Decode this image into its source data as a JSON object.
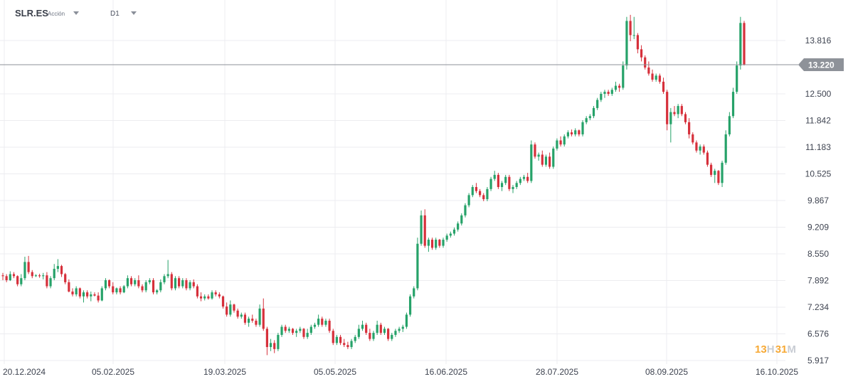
{
  "header": {
    "symbol": "SLR.ES",
    "instrument_type": "Acción",
    "timeframe": "D1"
  },
  "timer": {
    "hours": "13",
    "hours_unit": "H",
    "minutes": "31",
    "minutes_unit": "M"
  },
  "colors": {
    "up": "#26a269",
    "down": "#d6303b",
    "grid": "#ececf0",
    "price_line": "#8e9299",
    "price_badge": "#8e9299"
  },
  "chart_data": {
    "type": "candlestick",
    "y_ticks": [
      "13.816",
      "12.500",
      "11.842",
      "11.183",
      "10.525",
      "9.867",
      "9.209",
      "8.550",
      "7.892",
      "7.234",
      "6.576",
      "5.917"
    ],
    "x_ticks": [
      "20.12.2024",
      "05.02.2025",
      "19.03.2025",
      "05.05.2025",
      "16.06.2025",
      "28.07.2025",
      "08.09.2025",
      "16.10.2025"
    ],
    "current_price": "13.220",
    "ylim": [
      5.9,
      14.45
    ],
    "grid": true,
    "candles": [
      [
        8.02,
        8.08,
        7.9,
        8.0
      ],
      [
        8.0,
        8.05,
        7.85,
        7.9
      ],
      [
        7.9,
        8.12,
        7.88,
        8.05
      ],
      [
        8.05,
        8.1,
        7.95,
        8.0
      ],
      [
        8.0,
        8.02,
        7.75,
        7.8
      ],
      [
        7.8,
        8.05,
        7.75,
        7.95
      ],
      [
        7.95,
        8.48,
        7.9,
        8.35
      ],
      [
        8.35,
        8.5,
        8.05,
        8.1
      ],
      [
        8.1,
        8.15,
        7.95,
        8.0
      ],
      [
        8.0,
        8.05,
        7.98,
        8.02
      ],
      [
        8.02,
        8.06,
        7.96,
        8.0
      ],
      [
        8.0,
        8.08,
        7.92,
        8.02
      ],
      [
        8.02,
        8.1,
        7.7,
        7.75
      ],
      [
        7.75,
        8.0,
        7.7,
        7.95
      ],
      [
        7.95,
        8.3,
        7.9,
        8.18
      ],
      [
        8.18,
        8.42,
        8.1,
        8.25
      ],
      [
        8.25,
        8.28,
        7.98,
        8.05
      ],
      [
        8.05,
        8.08,
        7.8,
        7.85
      ],
      [
        7.85,
        7.92,
        7.6,
        7.62
      ],
      [
        7.62,
        7.7,
        7.5,
        7.55
      ],
      [
        7.55,
        7.75,
        7.5,
        7.7
      ],
      [
        7.7,
        7.72,
        7.45,
        7.5
      ],
      [
        7.5,
        7.65,
        7.35,
        7.6
      ],
      [
        7.6,
        7.65,
        7.45,
        7.5
      ],
      [
        7.5,
        7.62,
        7.38,
        7.55
      ],
      [
        7.55,
        7.6,
        7.5,
        7.52
      ],
      [
        7.52,
        7.6,
        7.35,
        7.4
      ],
      [
        7.4,
        7.75,
        7.38,
        7.7
      ],
      [
        7.7,
        7.95,
        7.65,
        7.9
      ],
      [
        7.9,
        7.92,
        7.7,
        7.75
      ],
      [
        7.75,
        7.85,
        7.55,
        7.6
      ],
      [
        7.6,
        7.72,
        7.55,
        7.7
      ],
      [
        7.7,
        7.75,
        7.55,
        7.6
      ],
      [
        7.6,
        7.78,
        7.58,
        7.75
      ],
      [
        7.75,
        8.02,
        7.7,
        7.95
      ],
      [
        7.95,
        8.0,
        7.75,
        7.8
      ],
      [
        7.8,
        7.95,
        7.75,
        7.9
      ],
      [
        7.9,
        8.02,
        7.7,
        7.75
      ],
      [
        7.75,
        7.8,
        7.6,
        7.65
      ],
      [
        7.65,
        7.9,
        7.6,
        7.85
      ],
      [
        7.85,
        7.95,
        7.8,
        7.9
      ],
      [
        7.9,
        7.95,
        7.55,
        7.6
      ],
      [
        7.6,
        7.68,
        7.55,
        7.65
      ],
      [
        7.65,
        7.92,
        7.6,
        7.85
      ],
      [
        7.85,
        8.05,
        7.8,
        8.0
      ],
      [
        8.0,
        8.4,
        7.95,
        8.05
      ],
      [
        8.05,
        8.1,
        7.65,
        7.7
      ],
      [
        7.7,
        8.0,
        7.65,
        7.95
      ],
      [
        7.95,
        8.0,
        7.7,
        7.75
      ],
      [
        7.75,
        7.95,
        7.7,
        7.9
      ],
      [
        7.9,
        7.95,
        7.65,
        7.7
      ],
      [
        7.7,
        7.9,
        7.65,
        7.85
      ],
      [
        7.85,
        7.92,
        7.7,
        7.75
      ],
      [
        7.75,
        7.8,
        7.45,
        7.5
      ],
      [
        7.5,
        7.6,
        7.38,
        7.45
      ],
      [
        7.45,
        7.55,
        7.4,
        7.5
      ],
      [
        7.5,
        7.55,
        7.42,
        7.45
      ],
      [
        7.45,
        7.65,
        7.42,
        7.6
      ],
      [
        7.6,
        7.65,
        7.5,
        7.55
      ],
      [
        7.55,
        7.6,
        7.45,
        7.5
      ],
      [
        7.5,
        7.52,
        7.2,
        7.25
      ],
      [
        7.25,
        7.35,
        7.0,
        7.05
      ],
      [
        7.05,
        7.4,
        7.0,
        7.3
      ],
      [
        7.3,
        7.32,
        7.1,
        7.15
      ],
      [
        7.15,
        7.2,
        6.95,
        7.0
      ],
      [
        7.0,
        7.1,
        6.95,
        7.05
      ],
      [
        7.05,
        7.1,
        6.8,
        6.85
      ],
      [
        6.85,
        7.0,
        6.75,
        6.95
      ],
      [
        6.95,
        7.05,
        6.85,
        6.9
      ],
      [
        6.9,
        6.95,
        6.75,
        6.8
      ],
      [
        6.8,
        7.3,
        6.75,
        7.2
      ],
      [
        7.2,
        7.45,
        6.65,
        6.7
      ],
      [
        6.7,
        6.75,
        6.05,
        6.25
      ],
      [
        6.25,
        6.45,
        6.15,
        6.35
      ],
      [
        6.35,
        6.42,
        6.1,
        6.2
      ],
      [
        6.2,
        6.6,
        6.15,
        6.55
      ],
      [
        6.55,
        6.8,
        6.5,
        6.75
      ],
      [
        6.75,
        6.8,
        6.6,
        6.65
      ],
      [
        6.65,
        6.75,
        6.6,
        6.7
      ],
      [
        6.7,
        6.72,
        6.55,
        6.6
      ],
      [
        6.6,
        6.7,
        6.5,
        6.65
      ],
      [
        6.65,
        6.75,
        6.6,
        6.7
      ],
      [
        6.7,
        6.72,
        6.45,
        6.5
      ],
      [
        6.5,
        6.7,
        6.45,
        6.6
      ],
      [
        6.6,
        6.8,
        6.55,
        6.75
      ],
      [
        6.75,
        6.85,
        6.7,
        6.8
      ],
      [
        6.8,
        7.05,
        6.75,
        6.95
      ],
      [
        6.95,
        7.0,
        6.75,
        6.8
      ],
      [
        6.8,
        6.95,
        6.75,
        6.9
      ],
      [
        6.9,
        6.95,
        6.6,
        6.65
      ],
      [
        6.65,
        6.7,
        6.3,
        6.35
      ],
      [
        6.35,
        6.55,
        6.3,
        6.5
      ],
      [
        6.5,
        6.55,
        6.3,
        6.35
      ],
      [
        6.35,
        6.45,
        6.25,
        6.3
      ],
      [
        6.3,
        6.38,
        6.2,
        6.25
      ],
      [
        6.25,
        6.45,
        6.2,
        6.4
      ],
      [
        6.4,
        6.55,
        6.35,
        6.5
      ],
      [
        6.5,
        6.8,
        6.45,
        6.7
      ],
      [
        6.7,
        6.9,
        6.65,
        6.8
      ],
      [
        6.8,
        6.85,
        6.55,
        6.6
      ],
      [
        6.6,
        6.7,
        6.4,
        6.45
      ],
      [
        6.45,
        6.65,
        6.4,
        6.6
      ],
      [
        6.6,
        6.9,
        6.55,
        6.8
      ],
      [
        6.8,
        6.85,
        6.55,
        6.6
      ],
      [
        6.6,
        6.75,
        6.55,
        6.7
      ],
      [
        6.7,
        6.72,
        6.4,
        6.45
      ],
      [
        6.45,
        6.6,
        6.4,
        6.55
      ],
      [
        6.55,
        6.7,
        6.5,
        6.65
      ],
      [
        6.65,
        6.75,
        6.6,
        6.7
      ],
      [
        6.7,
        6.8,
        6.62,
        6.75
      ],
      [
        6.75,
        7.1,
        6.7,
        7.05
      ],
      [
        7.05,
        7.55,
        7.0,
        7.5
      ],
      [
        7.5,
        7.75,
        7.45,
        7.7
      ],
      [
        7.7,
        8.95,
        7.65,
        8.8
      ],
      [
        8.8,
        9.62,
        8.75,
        9.5
      ],
      [
        9.5,
        9.65,
        8.7,
        8.75
      ],
      [
        8.75,
        8.95,
        8.6,
        8.9
      ],
      [
        8.9,
        8.95,
        8.65,
        8.7
      ],
      [
        8.7,
        8.95,
        8.65,
        8.9
      ],
      [
        8.9,
        8.92,
        8.7,
        8.75
      ],
      [
        8.75,
        8.95,
        8.7,
        8.9
      ],
      [
        8.9,
        9.05,
        8.85,
        9.0
      ],
      [
        9.0,
        9.1,
        8.95,
        9.05
      ],
      [
        9.05,
        9.2,
        9.0,
        9.15
      ],
      [
        9.15,
        9.35,
        9.1,
        9.3
      ],
      [
        9.3,
        9.55,
        9.25,
        9.5
      ],
      [
        9.5,
        9.8,
        9.45,
        9.75
      ],
      [
        9.75,
        10.05,
        9.7,
        10.0
      ],
      [
        10.0,
        10.25,
        9.95,
        10.2
      ],
      [
        10.2,
        10.3,
        10.05,
        10.1
      ],
      [
        10.1,
        10.15,
        9.95,
        10.0
      ],
      [
        10.0,
        10.05,
        9.85,
        9.9
      ],
      [
        9.9,
        10.2,
        9.85,
        10.15
      ],
      [
        10.15,
        10.45,
        10.1,
        10.4
      ],
      [
        10.4,
        10.6,
        10.35,
        10.5
      ],
      [
        10.5,
        10.55,
        10.15,
        10.2
      ],
      [
        10.2,
        10.35,
        10.1,
        10.3
      ],
      [
        10.3,
        10.5,
        10.25,
        10.45
      ],
      [
        10.45,
        10.5,
        10.1,
        10.15
      ],
      [
        10.15,
        10.25,
        10.05,
        10.2
      ],
      [
        10.2,
        10.35,
        10.15,
        10.3
      ],
      [
        10.3,
        10.45,
        10.25,
        10.4
      ],
      [
        10.4,
        10.5,
        10.35,
        10.45
      ],
      [
        10.45,
        10.55,
        10.3,
        10.35
      ],
      [
        10.35,
        11.35,
        10.3,
        11.25
      ],
      [
        11.25,
        11.3,
        10.9,
        10.95
      ],
      [
        10.95,
        11.05,
        10.85,
        11.0
      ],
      [
        11.0,
        11.1,
        10.7,
        10.75
      ],
      [
        10.75,
        11.0,
        10.7,
        10.95
      ],
      [
        10.95,
        11.05,
        10.65,
        10.7
      ],
      [
        10.7,
        11.2,
        10.65,
        11.15
      ],
      [
        11.15,
        11.4,
        11.1,
        11.35
      ],
      [
        11.35,
        11.45,
        11.2,
        11.25
      ],
      [
        11.25,
        11.5,
        11.2,
        11.45
      ],
      [
        11.45,
        11.6,
        11.4,
        11.55
      ],
      [
        11.55,
        11.62,
        11.45,
        11.5
      ],
      [
        11.5,
        11.65,
        11.45,
        11.6
      ],
      [
        11.6,
        11.62,
        11.45,
        11.5
      ],
      [
        11.5,
        11.85,
        11.45,
        11.8
      ],
      [
        11.8,
        11.95,
        11.75,
        11.9
      ],
      [
        11.9,
        12.0,
        11.85,
        11.95
      ],
      [
        11.95,
        12.2,
        11.9,
        12.15
      ],
      [
        12.15,
        12.4,
        12.1,
        12.35
      ],
      [
        12.35,
        12.55,
        12.3,
        12.5
      ],
      [
        12.5,
        12.6,
        12.4,
        12.55
      ],
      [
        12.55,
        12.6,
        12.45,
        12.5
      ],
      [
        12.5,
        12.65,
        12.45,
        12.6
      ],
      [
        12.6,
        12.8,
        12.55,
        12.7
      ],
      [
        12.7,
        12.75,
        12.55,
        12.65
      ],
      [
        12.65,
        13.3,
        12.6,
        13.2
      ],
      [
        13.2,
        14.4,
        13.1,
        14.3
      ],
      [
        14.3,
        14.45,
        13.8,
        13.95
      ],
      [
        13.95,
        14.4,
        13.85,
        13.95
      ],
      [
        13.95,
        14.0,
        13.5,
        13.6
      ],
      [
        13.6,
        13.7,
        13.3,
        13.4
      ],
      [
        13.4,
        13.45,
        13.1,
        13.15
      ],
      [
        13.15,
        13.3,
        12.95,
        13.0
      ],
      [
        13.0,
        13.1,
        12.8,
        12.85
      ],
      [
        12.85,
        13.0,
        12.8,
        12.95
      ],
      [
        12.95,
        13.0,
        12.75,
        12.8
      ],
      [
        12.8,
        12.9,
        12.5,
        12.55
      ],
      [
        12.55,
        12.6,
        11.6,
        11.75
      ],
      [
        11.75,
        12.15,
        11.3,
        12.05
      ],
      [
        12.05,
        12.2,
        11.95,
        12.0
      ],
      [
        12.0,
        12.25,
        11.9,
        12.2
      ],
      [
        12.2,
        12.25,
        11.95,
        12.0
      ],
      [
        12.0,
        12.05,
        11.75,
        11.8
      ],
      [
        11.8,
        11.9,
        11.4,
        11.5
      ],
      [
        11.5,
        11.55,
        11.25,
        11.3
      ],
      [
        11.3,
        11.35,
        11.05,
        11.1
      ],
      [
        11.1,
        11.25,
        11.0,
        11.2
      ],
      [
        11.2,
        11.25,
        11.0,
        11.05
      ],
      [
        11.05,
        11.1,
        10.7,
        10.75
      ],
      [
        10.75,
        10.8,
        10.45,
        10.5
      ],
      [
        10.5,
        10.65,
        10.3,
        10.6
      ],
      [
        10.6,
        10.62,
        10.25,
        10.3
      ],
      [
        10.3,
        10.85,
        10.2,
        10.8
      ],
      [
        10.8,
        11.6,
        10.75,
        11.5
      ],
      [
        11.5,
        12.05,
        11.45,
        11.95
      ],
      [
        11.95,
        12.65,
        11.9,
        12.55
      ],
      [
        12.55,
        13.3,
        12.5,
        13.2
      ],
      [
        13.2,
        14.4,
        13.1,
        14.25
      ],
      [
        14.25,
        14.3,
        13.2,
        13.22
      ]
    ]
  }
}
